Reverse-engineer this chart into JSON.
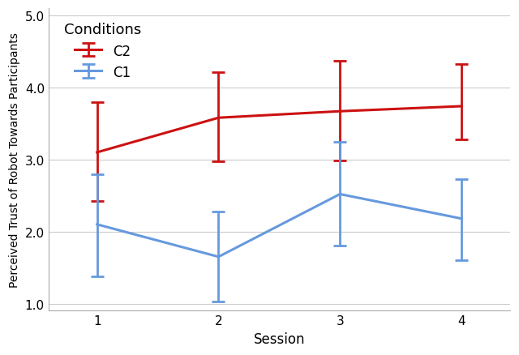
{
  "sessions": [
    1,
    2,
    3,
    4
  ],
  "c2_means": [
    3.1,
    3.58,
    3.67,
    3.74
  ],
  "c2_upper_err": [
    0.7,
    0.63,
    0.7,
    0.58
  ],
  "c2_lower_err": [
    0.68,
    0.6,
    0.68,
    0.46
  ],
  "c1_means": [
    2.1,
    1.65,
    2.52,
    2.18
  ],
  "c1_upper_err": [
    0.7,
    0.63,
    0.72,
    0.55
  ],
  "c1_lower_err": [
    0.72,
    0.62,
    0.72,
    0.58
  ],
  "c2_color": "#cc1111",
  "c1_color": "#6699dd",
  "title": "Conditions",
  "ylabel": "Perceived Trust of Robot Towards Participants",
  "xlabel": "Session",
  "ylim": [
    0.9,
    5.1
  ],
  "yticks": [
    1.0,
    2.0,
    3.0,
    4.0,
    5.0
  ],
  "xticks": [
    1,
    2,
    3,
    4
  ],
  "legend_labels": [
    "C2",
    "C1"
  ],
  "linewidth": 2.2,
  "capsize": 6,
  "capthick": 2.0,
  "elinewidth": 2.0
}
